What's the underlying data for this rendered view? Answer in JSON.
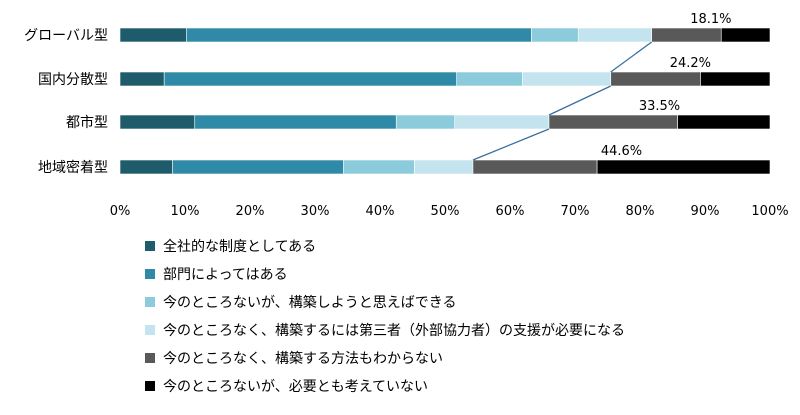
{
  "chart_data": {
    "type": "bar",
    "orientation": "horizontal",
    "stacked": true,
    "percent": true,
    "categories": [
      "グローバル型",
      "国内分散型",
      "都市型",
      "地域密着型"
    ],
    "series": [
      {
        "name": "全社的な制度としてある",
        "color": "#1f5c6b",
        "values": [
          10.2,
          6.8,
          11.5,
          8.1
        ]
      },
      {
        "name": "部門によってはある",
        "color": "#2e8aa6",
        "values": [
          53.1,
          45.0,
          31.0,
          26.3
        ]
      },
      {
        "name": "今のところないが、構築しようと思えばできる",
        "color": "#8ccbdc",
        "values": [
          7.2,
          10.1,
          9.0,
          10.9
        ]
      },
      {
        "name": "今のところなく、構築するには第三者（外部協力者）の支援が必要になる",
        "color": "#c3e4ee",
        "values": [
          11.3,
          13.6,
          14.5,
          9.0
        ]
      },
      {
        "name": "今のところなく、構築する方法もわからない",
        "color": "#595959",
        "values": [
          10.7,
          13.8,
          19.8,
          19.1
        ]
      },
      {
        "name": "今のところないが、必要とも考えていない",
        "color": "#000000",
        "values": [
          7.5,
          10.7,
          14.2,
          26.6
        ]
      }
    ],
    "data_labels": [
      "18.1%",
      "24.2%",
      "33.5%",
      "44.6%"
    ],
    "xlim": [
      0,
      100
    ],
    "x_ticks": [
      "0%",
      "10%",
      "20%",
      "30%",
      "40%",
      "50%",
      "60%",
      "70%",
      "80%",
      "90%",
      "100%"
    ],
    "grid": false,
    "legend_position": "bottom"
  }
}
